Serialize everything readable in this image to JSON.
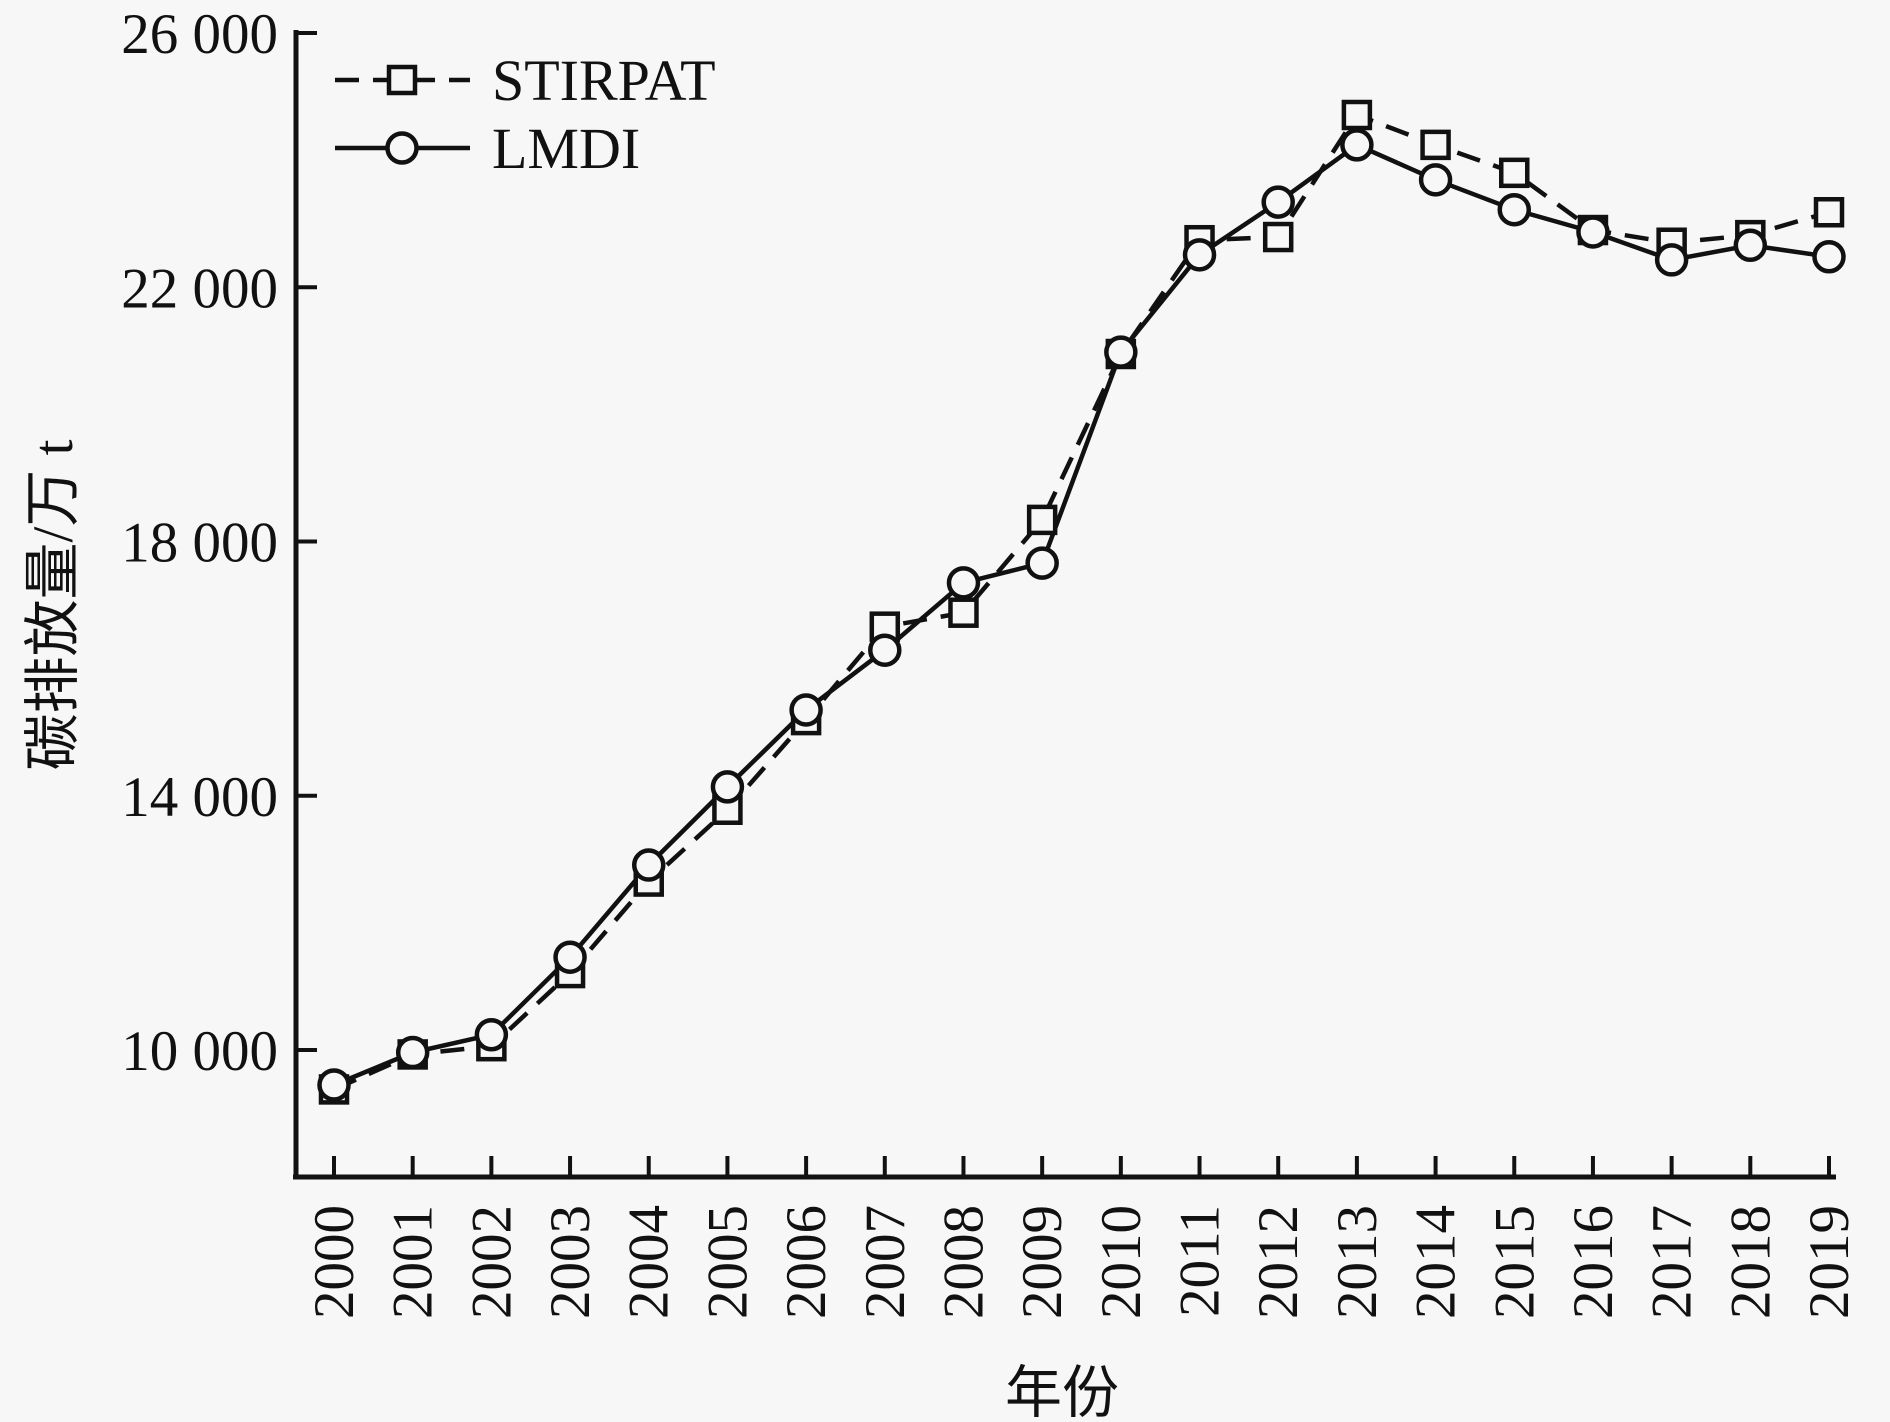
{
  "figure": {
    "background": "#f7f7f7",
    "ink": "#111111"
  },
  "chart_data": {
    "type": "line",
    "title": "",
    "xlabel": "年份",
    "ylabel": "碳排放量/万 t",
    "x": [
      2000,
      2001,
      2002,
      2003,
      2004,
      2005,
      2006,
      2007,
      2008,
      2009,
      2010,
      2011,
      2012,
      2013,
      2014,
      2015,
      2016,
      2017,
      2018,
      2019
    ],
    "series": [
      {
        "name": "STIRPAT",
        "line": "dashed",
        "marker": "square",
        "values": [
          9380,
          9930,
          10060,
          11210,
          12650,
          13780,
          15190,
          16660,
          16880,
          18340,
          20950,
          22740,
          22790,
          24710,
          24240,
          23800,
          22900,
          22700,
          22820,
          23180
        ]
      },
      {
        "name": "LMDI",
        "line": "solid",
        "marker": "circle",
        "values": [
          9450,
          9960,
          10240,
          11460,
          12910,
          14140,
          15350,
          16290,
          17350,
          17660,
          20980,
          22510,
          23340,
          24240,
          23690,
          23220,
          22870,
          22430,
          22660,
          22480
        ]
      }
    ],
    "ylim": [
      8000,
      26000
    ],
    "yticks": [
      26000,
      22000,
      18000,
      14000,
      10000
    ],
    "ytick_labels": [
      "26 000",
      "22 000",
      "18 000",
      "14 000",
      "10 000"
    ],
    "xtick_labels": [
      "2000",
      "2001",
      "2002",
      "2003",
      "2004",
      "2005",
      "2006",
      "2007",
      "2008",
      "2009",
      "2010",
      "2011",
      "2012",
      "2013",
      "2014",
      "2015",
      "2016",
      "2017",
      "2018",
      "2019"
    ],
    "grid": false,
    "legend_position": "top-left"
  }
}
